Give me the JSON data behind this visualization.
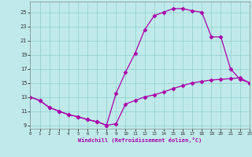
{
  "xlabel": "Windchill (Refroidissement éolien,°C)",
  "bg_color": "#c0eaea",
  "line_color": "#aa00aa",
  "grid_color": "#90cccc",
  "curve1_x": [
    0,
    1,
    2,
    3,
    4,
    5,
    6,
    7,
    8,
    9,
    10,
    11,
    12,
    13,
    14,
    15,
    16,
    17,
    18,
    19,
    20,
    21,
    22,
    23
  ],
  "curve1_y": [
    13,
    12.5,
    11.5,
    11.0,
    10.5,
    10.2,
    9.8,
    9.5,
    9.0,
    9.2,
    12.0,
    12.5,
    13.0,
    13.3,
    13.7,
    14.2,
    14.6,
    15.0,
    15.2,
    15.4,
    15.5,
    15.6,
    15.7,
    15.0
  ],
  "curve2_x": [
    0,
    1,
    2,
    3,
    4,
    5,
    6,
    7,
    8,
    9,
    10,
    11,
    12,
    13,
    14,
    15,
    16,
    17,
    18,
    19,
    20,
    21,
    22,
    23
  ],
  "curve2_y": [
    13,
    12.5,
    11.5,
    11.0,
    10.5,
    10.2,
    9.8,
    9.5,
    9.0,
    13.5,
    16.5,
    19.2,
    22.5,
    24.5,
    25.0,
    25.5,
    25.5,
    25.2,
    25.0,
    21.5,
    21.5,
    17.0,
    15.5,
    15.0
  ],
  "xlim": [
    0,
    23
  ],
  "ylim": [
    8.5,
    26.5
  ],
  "xticks": [
    0,
    1,
    2,
    3,
    4,
    5,
    6,
    7,
    8,
    9,
    10,
    11,
    12,
    13,
    14,
    15,
    16,
    17,
    18,
    19,
    20,
    21,
    22,
    23
  ],
  "yticks": [
    9,
    11,
    13,
    15,
    17,
    19,
    21,
    23,
    25
  ],
  "marker": "D",
  "markersize": 2.5,
  "linewidth": 0.9
}
